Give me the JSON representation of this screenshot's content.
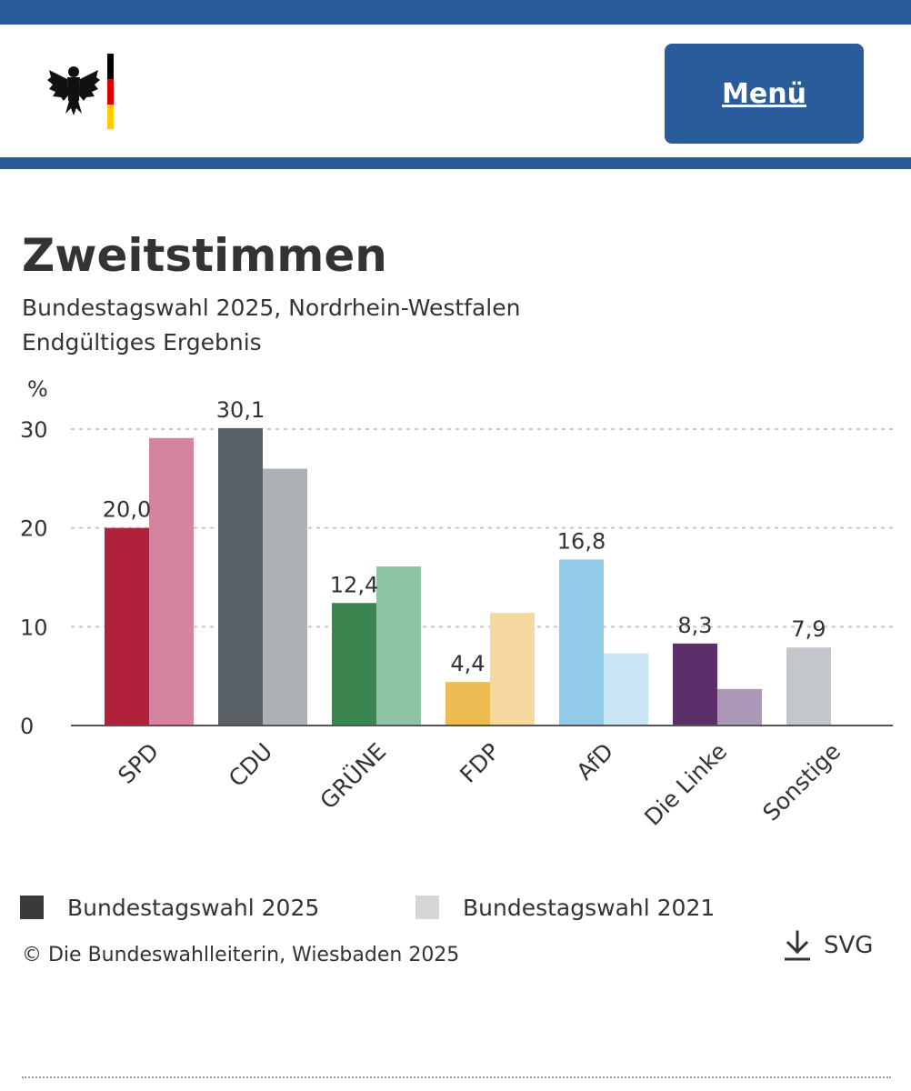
{
  "header": {
    "menu_label": "Menü",
    "logo_icon": "federal-eagle-icon",
    "colors": {
      "primary": "#2a5c9b",
      "flag_black": "#000000",
      "flag_red": "#dd0000",
      "flag_gold": "#ffcc00"
    }
  },
  "chart_data": {
    "type": "bar",
    "title": "Zweitstimmen",
    "subtitle": "Bundestagswahl 2025, Nordrhein-Westfalen",
    "subtitle2": "Endgültiges Ergebnis",
    "ylabel": "%",
    "ylim": [
      0,
      30
    ],
    "yticks": [
      0,
      10,
      20,
      30
    ],
    "grid": true,
    "categories": [
      "SPD",
      "CDU",
      "GRÜNE",
      "FDP",
      "AfD",
      "Die Linke",
      "Sonstige"
    ],
    "series": [
      {
        "name": "Bundestagswahl 2025",
        "values": [
          20.0,
          30.1,
          12.4,
          4.4,
          16.8,
          8.3,
          7.9
        ],
        "labels": [
          "20,0",
          "30,1",
          "12,4",
          "4,4",
          "16,8",
          "8,3",
          "7,9"
        ],
        "colors": [
          "#b0213c",
          "#5a6166",
          "#3a8550",
          "#ecbc52",
          "#92cbe8",
          "#5a2f6a",
          "#c3c6ca"
        ]
      },
      {
        "name": "Bundestagswahl 2021",
        "values": [
          29.1,
          26.0,
          16.1,
          11.4,
          7.3,
          3.7,
          null
        ],
        "colors": [
          "#d4849c",
          "#aeb1b3",
          "#8ec3a4",
          "#f6d9a0",
          "#c8e5f3",
          "#aa98b6",
          null
        ]
      }
    ],
    "legend": {
      "placement": "bottom",
      "entries": [
        {
          "label": "Bundestagswahl 2025",
          "color": "#3a3a3a"
        },
        {
          "label": "Bundestagswahl 2021",
          "color": "#d6d6d6"
        }
      ]
    }
  },
  "footer": {
    "source": "© Die Bundeswahlleiterin, Wiesbaden 2025",
    "download_label": "SVG",
    "download_icon": "download-icon"
  }
}
